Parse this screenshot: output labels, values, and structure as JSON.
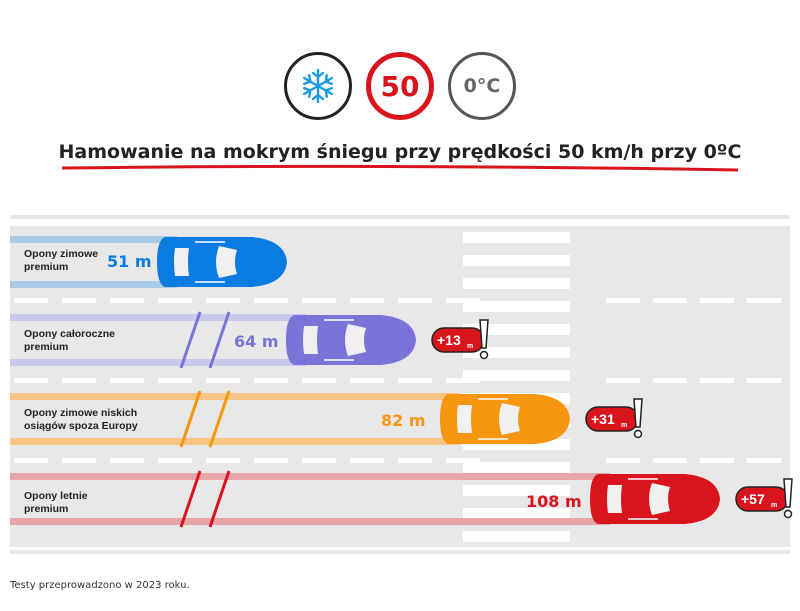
{
  "header": {
    "icons": [
      "snowflake-icon",
      "speed-limit-sign",
      "temperature-sign"
    ],
    "speed": "50",
    "temperature": "0°C",
    "title": "Hamowanie na mokrym śniegu przy prędkości 50 km/h przy 0ºC"
  },
  "colors": {
    "accent": "#d9141c",
    "road": "#e8e8e8",
    "blue": "#0a7be0",
    "purple": "#7a74d8",
    "orange": "#f7960f",
    "red": "#d9141c"
  },
  "lanes": [
    {
      "label": "Opony zimowe premium",
      "distance": "51 m",
      "difference": "",
      "color": "#0a7be0",
      "trail": "#a9c9e8"
    },
    {
      "label": "Opony całoroczne premium",
      "distance": "64 m",
      "difference": "+13",
      "unit": "m",
      "color": "#7a74d8",
      "trail": "#cac8ec"
    },
    {
      "label": "Opony zimowe niskich osiągów spoza Europy",
      "distance": "82 m",
      "difference": "+31",
      "unit": "m",
      "color": "#f7960f",
      "trail": "#f9c586"
    },
    {
      "label": "Opony letnie premium",
      "distance": "108 m",
      "difference": "+57",
      "unit": "m",
      "color": "#d9141c",
      "trail": "#e8a5a8"
    }
  ],
  "footnote": "Testy przeprowadzono w 2023 roku."
}
